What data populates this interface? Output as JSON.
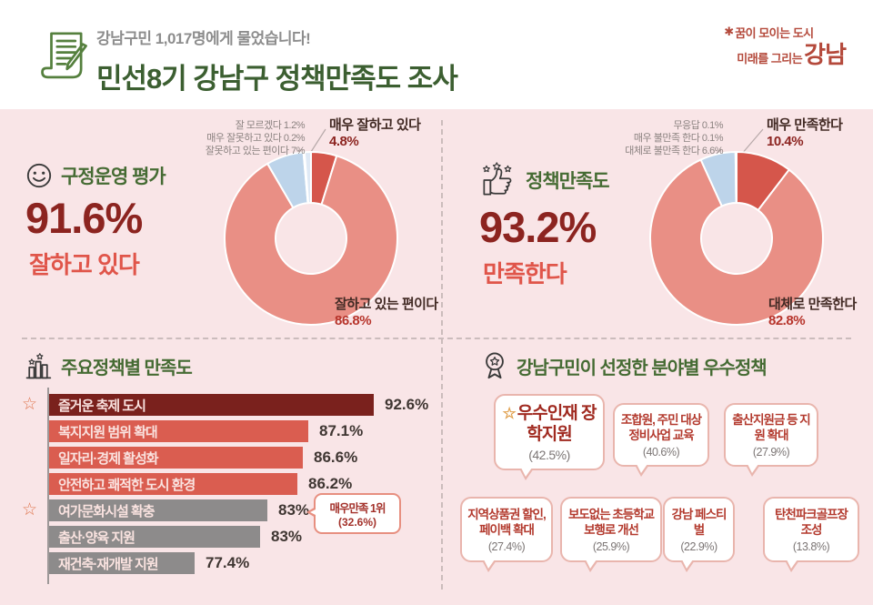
{
  "header": {
    "subtitle": "강남구민 1,017명에게 물었습니다!",
    "title": "민선8기 강남구 정책만족도 조사",
    "icon": "document-pencil-icon",
    "logo": {
      "icon": "spark-star-icon",
      "tagline1": "꿈이 모이는 도시",
      "tagline2": "미래를 그리는",
      "brand": "강남",
      "color": "#b4493b"
    }
  },
  "glyphs": {
    "star": "☆",
    "spark": "✱"
  },
  "colors": {
    "background_pink": "#f9e5e7",
    "title_green": "#3c5f31",
    "section_green": "#456b33",
    "accent_dark_red": "#8c2420",
    "accent_red": "#e0554a",
    "donut_dark_red": "#d5564b",
    "donut_salmon": "#e98f85",
    "donut_light_blue": "#bdd4ea",
    "bar_maroon": "#7a211d",
    "bar_red": "#da5d50",
    "bar_gray": "#8d8b8b",
    "star_orange": "#e0764f"
  },
  "chart_data": [
    {
      "id": "district-admin-evaluation",
      "type": "pie",
      "subtype": "donut",
      "icon": "smiley-icon",
      "title": "구정운영 평가",
      "headline_value": "91.6%",
      "headline_label": "잘하고 있다",
      "start_angle_deg": -90,
      "direction": "clockwise",
      "slices": [
        {
          "label": "매우 잘하고 있다",
          "value": 4.8,
          "color": "#d5564b"
        },
        {
          "label": "잘하고 있는 편이다",
          "value": 86.8,
          "color": "#e98f85"
        },
        {
          "label": "잘못하고 있는 편이다",
          "value": 7,
          "color": "#bdd4ea"
        },
        {
          "label": "매우 잘못하고 있다",
          "value": 0.2,
          "color": "#9cbede"
        },
        {
          "label": "잘 모르겠다",
          "value": 1.2,
          "color": "#dfe9f5"
        }
      ],
      "side_labels": [
        "잘 모르겠다 1.2%",
        "매우 잘못하고 있다 0.2%",
        "잘못하고 있는 편이다 7%"
      ],
      "callout_top": {
        "name": "매우 잘하고 있다",
        "value": "4.8%"
      },
      "callout_bottom": {
        "name": "잘하고 있는 편이다",
        "value": "86.8%"
      }
    },
    {
      "id": "policy-satisfaction",
      "type": "pie",
      "subtype": "donut",
      "icon": "thumbs-up-icon",
      "title": "정책만족도",
      "headline_value": "93.2%",
      "headline_label": "만족한다",
      "start_angle_deg": -90,
      "direction": "clockwise",
      "slices": [
        {
          "label": "매우 만족한다",
          "value": 10.4,
          "color": "#d5564b"
        },
        {
          "label": "대체로 만족한다",
          "value": 82.8,
          "color": "#e98f85"
        },
        {
          "label": "대체로 불만족 한다",
          "value": 6.6,
          "color": "#bdd4ea"
        },
        {
          "label": "매우 불만족 한다",
          "value": 0.1,
          "color": "#9cbede"
        },
        {
          "label": "무응답",
          "value": 0.1,
          "color": "#dfe9f5"
        }
      ],
      "side_labels": [
        "무응답 0.1%",
        "매우 불만족 한다 0.1%",
        "대체로 불만족 한다 6.6%"
      ],
      "callout_top": {
        "name": "매우 만족한다",
        "value": "10.4%"
      },
      "callout_bottom": {
        "name": "대체로 만족한다",
        "value": "82.8%"
      }
    },
    {
      "id": "satisfaction-by-policy",
      "type": "bar",
      "orientation": "horizontal",
      "icon": "bar-chart-icon",
      "title": "주요정책별 만족도",
      "bars": [
        {
          "label": "즐거운 축제 도시",
          "value": 92.6,
          "value_label": "92.6%",
          "color": "#7a211d",
          "star": true,
          "display_width": 357
        },
        {
          "label": "복지지원 범위 확대",
          "value": 87.1,
          "value_label": "87.1%",
          "color": "#da5d50",
          "star": false,
          "display_width": 285
        },
        {
          "label": "일자리·경제 활성화",
          "value": 86.6,
          "value_label": "86.6%",
          "color": "#da5d50",
          "star": false,
          "display_width": 279
        },
        {
          "label": "안전하고 쾌적한 도시 환경",
          "value": 86.2,
          "value_label": "86.2%",
          "color": "#da5d50",
          "star": false,
          "display_width": 273
        },
        {
          "label": "여가문화시설 확충",
          "value": 83,
          "value_label": "83%",
          "color": "#8d8b8b",
          "star": true,
          "display_width": 240
        },
        {
          "label": "출산·양육 지원",
          "value": 83,
          "value_label": "83%",
          "color": "#8d8b8b",
          "star": false,
          "display_width": 232
        },
        {
          "label": "재건축·재개발 지원",
          "value": 77.4,
          "value_label": "77.4%",
          "color": "#8d8b8b",
          "star": false,
          "display_width": 160
        }
      ],
      "callout": {
        "line1": "매우만족 1위",
        "line2": "(32.6%)",
        "attached_to": "여가문화시설 확충"
      }
    },
    {
      "id": "best-policies-by-field",
      "type": "table",
      "icon": "medal-icon",
      "title": "강남구민이 선정한 분야별 우수정책",
      "items": [
        {
          "title": "우수인재 장학지원",
          "pct": "(42.5%)",
          "star": true
        },
        {
          "title": "조합원, 주민 대상 정비사업 교육",
          "pct": "(40.6%)",
          "star": false
        },
        {
          "title": "출산지원금 등 지원 확대",
          "pct": "(27.9%)",
          "star": false
        },
        {
          "title": "지역상품권 할인, 페이백 확대",
          "pct": "(27.4%)",
          "star": false
        },
        {
          "title": "보도없는 초등학교 보행로 개선",
          "pct": "(25.9%)",
          "star": false
        },
        {
          "title": "강남 페스티벌",
          "pct": "(22.9%)",
          "star": false
        },
        {
          "title": "탄천파크골프장 조성",
          "pct": "(13.8%)",
          "star": false
        }
      ]
    }
  ]
}
